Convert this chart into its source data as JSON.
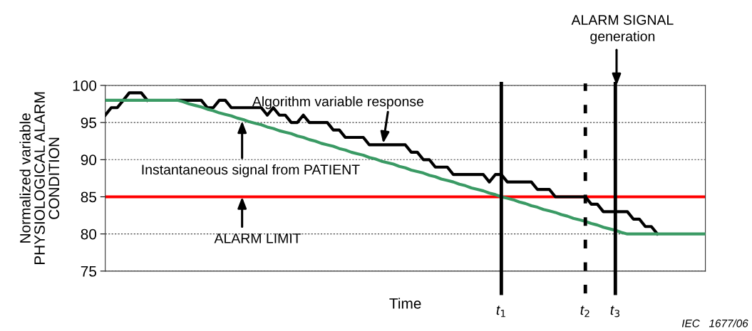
{
  "chart_data": {
    "type": "line",
    "xlabel": "Time",
    "ylabel": "Normalized variable\nPHYSIOLOGICAL ALARM\nCONDITION",
    "categories": [
      null,
      null,
      null,
      null,
      null,
      null,
      null,
      null,
      null,
      null,
      null,
      null,
      null,
      null,
      null,
      null,
      null,
      null,
      null,
      null,
      null,
      null,
      null,
      null,
      null,
      null,
      null,
      null,
      null,
      null,
      null,
      null,
      null,
      null,
      null,
      null,
      null,
      null,
      null,
      null,
      null,
      null,
      null,
      null,
      null,
      null,
      null,
      null,
      null,
      null,
      null,
      null,
      null,
      null,
      null,
      null,
      null,
      null,
      null,
      null,
      null,
      null,
      null,
      null,
      null,
      null,
      "t$_{1}$",
      null,
      null,
      null,
      null,
      null,
      null,
      null,
      null,
      null,
      null,
      null,
      null,
      null,
      "t$_{2}$",
      null,
      null,
      null,
      null,
      "t$_{3}$",
      null,
      null,
      null,
      null,
      null,
      null,
      null,
      null,
      null,
      null,
      null,
      null,
      null,
      null,
      null
    ],
    "ylim": [
      75,
      100
    ],
    "yticks": [
      75,
      80,
      85,
      90,
      95,
      100
    ],
    "grid": "y",
    "series": [
      {
        "color": "#000000",
        "values": [
          96,
          97,
          97,
          98,
          99,
          99,
          99,
          98,
          null,
          null,
          null,
          null,
          98,
          98,
          98,
          98,
          98,
          97,
          97,
          98,
          98,
          97,
          97,
          97,
          97,
          97,
          97,
          96,
          97,
          96,
          96,
          95,
          95,
          96,
          95,
          95,
          95,
          95,
          94,
          94,
          93,
          93,
          93,
          93,
          92,
          92,
          92,
          92,
          92,
          92,
          92,
          91,
          91,
          90,
          90,
          89,
          89,
          89,
          88,
          88,
          88,
          88,
          88,
          88,
          87,
          88,
          88,
          87,
          87,
          87,
          87,
          87,
          86,
          86,
          86,
          85,
          85,
          85,
          85,
          85,
          85,
          84,
          84,
          83,
          83,
          83,
          83,
          83,
          82,
          82,
          81,
          81,
          80,
          null,
          null,
          null,
          null,
          null,
          null,
          null,
          null
        ]
      },
      {
        "color": "#3a9a64",
        "values": [
          98,
          98,
          98,
          98,
          98,
          98,
          98,
          98,
          98,
          98,
          98,
          98,
          98,
          97.8,
          97.5,
          97.3,
          97.1,
          96.8,
          96.6,
          96.3,
          96.1,
          95.9,
          95.6,
          95.4,
          95.1,
          94.9,
          94.7,
          94.4,
          94.2,
          93.9,
          93.7,
          93.5,
          93.2,
          93.0,
          92.7,
          92.5,
          92.2,
          92.0,
          91.8,
          91.5,
          91.3,
          91.0,
          90.8,
          90.6,
          90.3,
          90.1,
          89.8,
          89.6,
          89.4,
          89.1,
          88.9,
          88.6,
          88.4,
          88.2,
          87.9,
          87.7,
          87.4,
          87.2,
          87.0,
          86.7,
          86.5,
          86.2,
          86.0,
          85.8,
          85.5,
          85.3,
          85.0,
          84.8,
          84.6,
          84.3,
          84.1,
          83.8,
          83.6,
          83.3,
          83.1,
          82.9,
          82.6,
          82.4,
          82.1,
          81.9,
          81.7,
          81.4,
          81.2,
          80.9,
          80.7,
          80.5,
          80.2,
          80,
          80,
          80,
          80,
          80,
          80,
          80,
          80,
          80,
          80,
          80,
          80,
          80,
          80
        ]
      }
    ],
    "ref_lines": [
      {
        "axis": "y",
        "value": 85,
        "color": "#ff0000",
        "line_style": "solid"
      },
      {
        "axis": "x",
        "value": "t$_{1}$",
        "color": "#000000",
        "line_style": "solid"
      },
      {
        "axis": "x",
        "value": "t$_{2}$",
        "color": "#000000",
        "line_style": "dashed"
      },
      {
        "axis": "x",
        "value": "t$_{3}$",
        "color": "#000000",
        "line_style": "solid"
      }
    ],
    "annotations": [
      {
        "text": "Algorithm variable response",
        "y": 92.2
      },
      "Instantaneous signal from PATIENT",
      {
        "text": "ALARM LIMIT",
        "y": 85
      },
      {
        "text": "ALARM SIGNAL\ngeneration",
        "x": "t$_{3}$",
        "y": 100
      },
      "IEC   1677/06"
    ]
  }
}
